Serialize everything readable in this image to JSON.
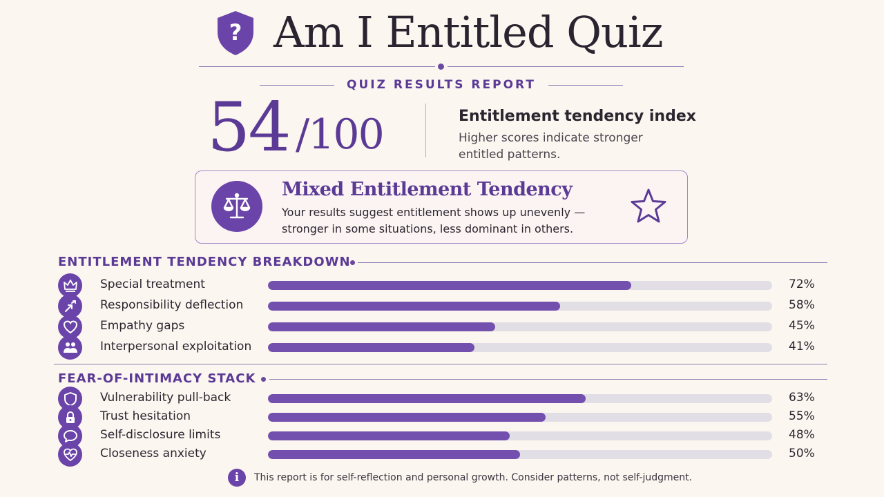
{
  "header": {
    "title": "Am I Entitled Quiz",
    "subtitle": "QUIZ RESULTS REPORT",
    "icon": "shield-question-icon"
  },
  "score": {
    "value": "54",
    "max": "/100",
    "index_title": "Entitlement tendency index",
    "index_description": "Higher scores indicate stronger entitled patterns."
  },
  "result": {
    "title": "Mixed Entitlement Tendency",
    "description": "Your results suggest entitlement shows up unevenly — stronger in some situations, less dominant in others.",
    "icon": "scales-icon",
    "badge_icon": "star-icon"
  },
  "entitlement_section": {
    "title": "ENTITLEMENT TENDENCY BREAKDOWN",
    "rows": [
      {
        "label": "Special treatment",
        "percent": 72,
        "percent_label": "72%",
        "icon": "crown-icon"
      },
      {
        "label": "Responsibility deflection",
        "percent": 58,
        "percent_label": "58%",
        "icon": "deflect-arrows-icon"
      },
      {
        "label": "Empathy gaps",
        "percent": 45,
        "percent_label": "45%",
        "icon": "heart-icon"
      },
      {
        "label": "Interpersonal exploitation",
        "percent": 41,
        "percent_label": "41%",
        "icon": "people-icon"
      }
    ]
  },
  "intimacy_section": {
    "title": "FEAR-OF-INTIMACY STACK",
    "rows": [
      {
        "label": "Vulnerability pull-back",
        "percent": 63,
        "percent_label": "63%",
        "icon": "shield-icon"
      },
      {
        "label": "Trust hesitation",
        "percent": 55,
        "percent_label": "55%",
        "icon": "lock-icon"
      },
      {
        "label": "Self-disclosure limits",
        "percent": 48,
        "percent_label": "48%",
        "icon": "speech-bubble-icon"
      },
      {
        "label": "Closeness anxiety",
        "percent": 50,
        "percent_label": "50%",
        "icon": "heart-pulse-icon"
      }
    ]
  },
  "footer": {
    "text": "This report is for self-reflection and personal growth. Consider patterns, not self-judgment.",
    "icon": "info-icon",
    "icon_glyph": "i"
  },
  "colors": {
    "accent": "#5b3a96",
    "bar_fill": "#7450ae",
    "bar_track": "#e2dee5",
    "background": "#fbf6ef"
  }
}
